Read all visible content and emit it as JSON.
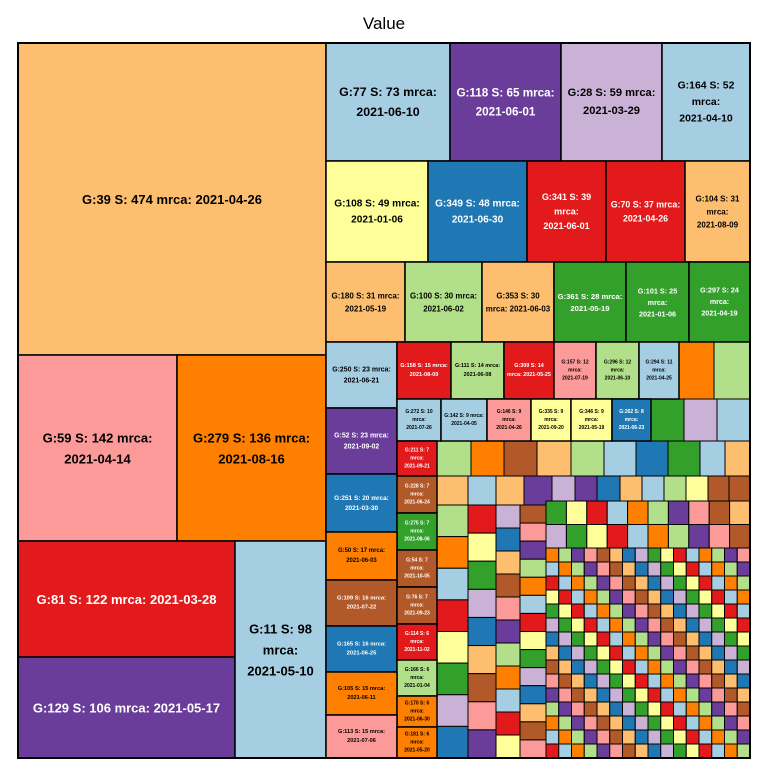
{
  "chart_data": {
    "type": "treemap",
    "title": "Value",
    "palette": [
      "#a6cee3",
      "#1f78b4",
      "#b2df8a",
      "#33a02c",
      "#fb9a99",
      "#e31a1c",
      "#fdbf6f",
      "#ff7f00",
      "#cab2d6",
      "#6a3d9a",
      "#ffff99",
      "#b15928"
    ],
    "leaves": [
      {
        "label": "G:39 S: 474 mrca: 2021-04-26",
        "value": 474,
        "color": "#fdbf6f"
      },
      {
        "label": "G:59 S: 142 mrca: 2021-04-14",
        "value": 142,
        "color": "#fb9a99"
      },
      {
        "label": "G:279 S: 136 mrca: 2021-08-16",
        "value": 136,
        "color": "#ff7f00"
      },
      {
        "label": "G:81 S: 122 mrca: 2021-03-28",
        "value": 122,
        "color": "#e31a1c"
      },
      {
        "label": "G:129 S: 106 mrca: 2021-05-17",
        "value": 106,
        "color": "#6a3d9a"
      },
      {
        "label": "G:11 S: 98 mrca: 2021-05-10",
        "value": 98,
        "color": "#a6cee3"
      },
      {
        "label": "G:77 S: 73 mrca: 2021-06-10",
        "value": 73,
        "color": "#a6cee3"
      },
      {
        "label": "G:118 S: 65 mrca: 2021-06-01",
        "value": 65,
        "color": "#6a3d9a"
      },
      {
        "label": "G:28 S: 59 mrca: 2021-03-29",
        "value": 59,
        "color": "#cab2d6"
      },
      {
        "label": "G:164 S: 52 mrca: 2021-04-10",
        "value": 52,
        "color": "#a6cee3"
      },
      {
        "label": "G:108 S: 49 mrca: 2021-01-06",
        "value": 49,
        "color": "#ffff99"
      },
      {
        "label": "G:349 S: 48 mrca: 2021-06-30",
        "value": 48,
        "color": "#1f78b4"
      },
      {
        "label": "G:341 S: 39 mrca: 2021-06-01",
        "value": 39,
        "color": "#e31a1c"
      },
      {
        "label": "G:70 S: 37 mrca: 2021-04-26",
        "value": 37,
        "color": "#e31a1c"
      },
      {
        "label": "G:104 S: 31 mrca: 2021-08-09",
        "value": 31,
        "color": "#fdbf6f"
      },
      {
        "label": "G:180 S: 31 mrca: 2021-05-19",
        "value": 31,
        "color": "#fdbf6f"
      },
      {
        "label": "G:100 S: 30 mrca: 2021-06-02",
        "value": 30,
        "color": "#b2df8a"
      },
      {
        "label": "G:353 S: 30 mrca: 2021-06-03",
        "value": 30,
        "color": "#fdbf6f"
      },
      {
        "label": "G:361 S: 28 mrca: 2021-05-19",
        "value": 28,
        "color": "#33a02c"
      },
      {
        "label": "G:101 S: 25 mrca: 2021-01-06",
        "value": 25,
        "color": "#33a02c"
      },
      {
        "label": "G:297 S: 24 mrca: 2021-04-19",
        "value": 24,
        "color": "#33a02c"
      },
      {
        "label": "G:250 S: 23 mrca: 2021-06-21",
        "value": 23,
        "color": "#a6cee3"
      },
      {
        "label": "G:158 S: 15 mrca: 2021-08-09",
        "value": 15,
        "color": "#e31a1c"
      },
      {
        "label": "G:111 S: 14 mrca: 2021-06-08",
        "value": 14,
        "color": "#b2df8a"
      },
      {
        "label": "G:309 S: 14 mrca: 2021-05-25",
        "value": 14,
        "color": "#e31a1c"
      },
      {
        "label": "G:157 S: 12 mrca: 2021-07-19",
        "value": 12,
        "color": "#fb9a99"
      },
      {
        "label": "G:296 S: 12 mrca: 2021-06-10",
        "value": 12,
        "color": "#b2df8a"
      },
      {
        "label": "G:294 S: 11 mrca: 2021-04-25",
        "value": 11,
        "color": "#a6cee3"
      },
      {
        "label": "G:52 S: 23 mrca: 2021-09-02",
        "value": 23,
        "color": "#6a3d9a"
      },
      {
        "label": "G:272 S: 10 mrca: 2021-07-26",
        "value": 10,
        "color": "#a6cee3"
      },
      {
        "label": "G:142 S: 9 mrca: 2021-04-05",
        "value": 9,
        "color": "#a6cee3"
      },
      {
        "label": "G:146 S: 9 mrca: 2021-04-26",
        "value": 9,
        "color": "#fb9a99"
      },
      {
        "label": "G:335 S: 9 mrca: 2021-09-20",
        "value": 9,
        "color": "#ffff99"
      },
      {
        "label": "G:346 S: 9 mrca: 2021-05-19",
        "value": 9,
        "color": "#ffff99"
      },
      {
        "label": "G:262 S: 8 mrca: 2021-06-23",
        "value": 8,
        "color": "#1f78b4"
      },
      {
        "label": "G:211 S: 7 mrca: 2021-09-21",
        "value": 7,
        "color": "#e31a1c"
      },
      {
        "label": "G:251 S: 20 mrca: 2021-03-30",
        "value": 20,
        "color": "#1f78b4"
      },
      {
        "label": "G:228 S: 7 mrca: 2021-06-24",
        "value": 7,
        "color": "#b15928"
      },
      {
        "label": "G:275 S: 7 mrca: 2021-08-06",
        "value": 7,
        "color": "#33a02c"
      },
      {
        "label": "G:50 S: 17 mrca: 2021-06-03",
        "value": 17,
        "color": "#ff7f00"
      },
      {
        "label": "G:54 S: 7 mrca: 2021-10-05",
        "value": 7,
        "color": "#b15928"
      },
      {
        "label": "G:109 S: 16 mrca: 2021-07-22",
        "value": 16,
        "color": "#b15928"
      },
      {
        "label": "G:76 S: 7 mrca: 2021-09-23",
        "value": 7,
        "color": "#b15928"
      },
      {
        "label": "G:165 S: 16 mrca: 2021-06-25",
        "value": 16,
        "color": "#1f78b4"
      },
      {
        "label": "G:114 S: 6 mrca: 2021-11-02",
        "value": 6,
        "color": "#e31a1c"
      },
      {
        "label": "G:166 S: 6 mrca: 2021-01-04",
        "value": 6,
        "color": "#b2df8a"
      },
      {
        "label": "G:105 S: 15 mrca: 2021-06-11",
        "value": 15,
        "color": "#ff7f00"
      },
      {
        "label": "G:170 S: 6 mrca: 2021-06-30",
        "value": 6,
        "color": "#ff7f00"
      },
      {
        "label": "G:113 S: 15 mrca: 2021-07-06",
        "value": 15,
        "color": "#fb9a99"
      },
      {
        "label": "G:181 S: 6 mrca: 2021-05-20",
        "value": 6,
        "color": "#ff7f00"
      }
    ]
  }
}
